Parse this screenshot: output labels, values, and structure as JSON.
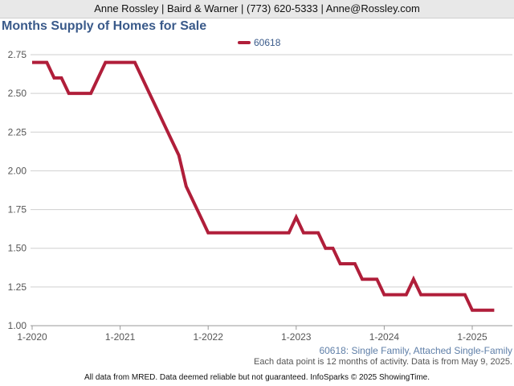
{
  "header": {
    "text": "Anne Rossley | Baird & Warner | (773) 620-5333 | Anne@Rossley.com"
  },
  "chart_title": "Months Supply of Homes for Sale",
  "footnotes": {
    "property_types": "60618: Single Family, Attached Single-Family",
    "data_note": "Each data point is 12 months of activity. Data is from May 9, 2025.",
    "source": "All data from MRED. Data deemed reliable but not guaranteed. InfoSparks © 2025 ShowingTime."
  },
  "chart_data": {
    "type": "line",
    "title": "Months Supply of Homes for Sale",
    "xlabel": "",
    "ylabel": "",
    "ylim": [
      1.0,
      2.75
    ],
    "yticks": [
      "1.00",
      "1.25",
      "1.50",
      "1.75",
      "2.00",
      "2.25",
      "2.50",
      "2.75"
    ],
    "xticks": [
      "1-2020",
      "1-2021",
      "1-2022",
      "1-2023",
      "1-2024",
      "1-2025"
    ],
    "grid": true,
    "legend_position": "top-center",
    "series": [
      {
        "name": "60618",
        "color": "#b01e3a",
        "points": [
          [
            "2020-01",
            2.7
          ],
          [
            "2020-02",
            2.7
          ],
          [
            "2020-03",
            2.7
          ],
          [
            "2020-04",
            2.6
          ],
          [
            "2020-05",
            2.6
          ],
          [
            "2020-06",
            2.5
          ],
          [
            "2020-07",
            2.5
          ],
          [
            "2020-08",
            2.5
          ],
          [
            "2020-09",
            2.5
          ],
          [
            "2020-10",
            2.6
          ],
          [
            "2020-11",
            2.7
          ],
          [
            "2020-12",
            2.7
          ],
          [
            "2021-01",
            2.7
          ],
          [
            "2021-02",
            2.7
          ],
          [
            "2021-03",
            2.7
          ],
          [
            "2021-04",
            2.6
          ],
          [
            "2021-05",
            2.5
          ],
          [
            "2021-06",
            2.4
          ],
          [
            "2021-07",
            2.3
          ],
          [
            "2021-08",
            2.2
          ],
          [
            "2021-09",
            2.1
          ],
          [
            "2021-10",
            1.9
          ],
          [
            "2021-11",
            1.8
          ],
          [
            "2021-12",
            1.7
          ],
          [
            "2022-01",
            1.6
          ],
          [
            "2022-02",
            1.6
          ],
          [
            "2022-03",
            1.6
          ],
          [
            "2022-04",
            1.6
          ],
          [
            "2022-05",
            1.6
          ],
          [
            "2022-06",
            1.6
          ],
          [
            "2022-07",
            1.6
          ],
          [
            "2022-08",
            1.6
          ],
          [
            "2022-09",
            1.6
          ],
          [
            "2022-10",
            1.6
          ],
          [
            "2022-11",
            1.6
          ],
          [
            "2022-12",
            1.6
          ],
          [
            "2023-01",
            1.7
          ],
          [
            "2023-02",
            1.6
          ],
          [
            "2023-03",
            1.6
          ],
          [
            "2023-04",
            1.6
          ],
          [
            "2023-05",
            1.5
          ],
          [
            "2023-06",
            1.5
          ],
          [
            "2023-07",
            1.4
          ],
          [
            "2023-08",
            1.4
          ],
          [
            "2023-09",
            1.4
          ],
          [
            "2023-10",
            1.3
          ],
          [
            "2023-11",
            1.3
          ],
          [
            "2023-12",
            1.3
          ],
          [
            "2024-01",
            1.2
          ],
          [
            "2024-02",
            1.2
          ],
          [
            "2024-03",
            1.2
          ],
          [
            "2024-04",
            1.2
          ],
          [
            "2024-05",
            1.3
          ],
          [
            "2024-06",
            1.2
          ],
          [
            "2024-07",
            1.2
          ],
          [
            "2024-08",
            1.2
          ],
          [
            "2024-09",
            1.2
          ],
          [
            "2024-10",
            1.2
          ],
          [
            "2024-11",
            1.2
          ],
          [
            "2024-12",
            1.2
          ],
          [
            "2025-01",
            1.1
          ],
          [
            "2025-02",
            1.1
          ],
          [
            "2025-03",
            1.1
          ],
          [
            "2025-04",
            1.1
          ]
        ]
      }
    ]
  }
}
